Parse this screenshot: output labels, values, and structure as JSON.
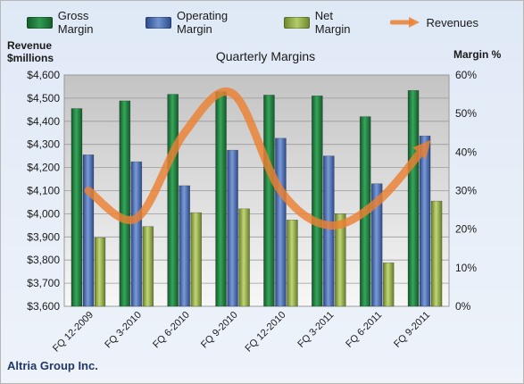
{
  "chart_data": {
    "type": "bar",
    "title": "Quarterly Margins",
    "company": "Altria Group Inc.",
    "left_axis_title_line1": "Revenue",
    "left_axis_title_line2": "$millions",
    "right_axis_title": "Margin %",
    "categories": [
      "FQ 12-2009",
      "FQ 3-2010",
      "FQ 6-2010",
      "FQ 9-2010",
      "FQ 12-2010",
      "FQ 3-2011",
      "FQ 6-2011",
      "FQ 9-2011"
    ],
    "left_ylim": [
      3600,
      4600
    ],
    "left_ticks": [
      "$3,600",
      "$3,700",
      "$3,800",
      "$3,900",
      "$4,000",
      "$4,100",
      "$4,200",
      "$4,300",
      "$4,400",
      "$4,500",
      "$4,600"
    ],
    "right_ylim": [
      0,
      60
    ],
    "right_ticks": [
      "0%",
      "10%",
      "20%",
      "30%",
      "40%",
      "50%",
      "60%"
    ],
    "grid": true,
    "legend_position": "top",
    "series": [
      {
        "name": "Gross Margin",
        "axis": "right",
        "kind": "bar",
        "color": "#1e7a3c",
        "values": [
          51.3,
          53.3,
          55.0,
          55.7,
          54.8,
          54.6,
          49.2,
          56.0
        ]
      },
      {
        "name": "Operating Margin",
        "axis": "right",
        "kind": "bar",
        "color": "#4a6fb5",
        "values": [
          39.3,
          37.5,
          31.3,
          40.5,
          43.6,
          39.0,
          31.8,
          44.2
        ]
      },
      {
        "name": "Net Margin",
        "axis": "right",
        "kind": "bar",
        "color": "#8faa48",
        "values": [
          17.8,
          20.7,
          24.3,
          25.3,
          22.4,
          24.0,
          11.3,
          27.3
        ]
      },
      {
        "name": "Revenues",
        "axis": "left",
        "kind": "line",
        "color": "#ec8133",
        "values": [
          4100,
          3980,
          4350,
          4520,
          4100,
          3950,
          4050,
          4290
        ]
      }
    ]
  }
}
